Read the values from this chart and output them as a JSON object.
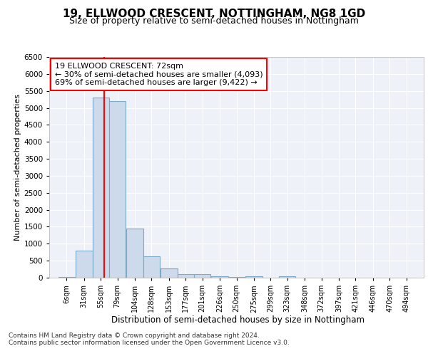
{
  "title1": "19, ELLWOOD CRESCENT, NOTTINGHAM, NG8 1GD",
  "title2": "Size of property relative to semi-detached houses in Nottingham",
  "xlabel": "Distribution of semi-detached houses by size in Nottingham",
  "ylabel": "Number of semi-detached properties",
  "footer1": "Contains HM Land Registry data © Crown copyright and database right 2024.",
  "footer2": "Contains public sector information licensed under the Open Government Licence v3.0.",
  "annotation_title": "19 ELLWOOD CRESCENT: 72sqm",
  "annotation_line1": "← 30% of semi-detached houses are smaller (4,093)",
  "annotation_line2": "69% of semi-detached houses are larger (9,422) →",
  "property_size": 72,
  "bin_labels": [
    "6sqm",
    "31sqm",
    "55sqm",
    "79sqm",
    "104sqm",
    "128sqm",
    "153sqm",
    "177sqm",
    "201sqm",
    "226sqm",
    "250sqm",
    "275sqm",
    "299sqm",
    "323sqm",
    "348sqm",
    "372sqm",
    "397sqm",
    "421sqm",
    "446sqm",
    "470sqm",
    "494sqm"
  ],
  "bin_edges": [
    6,
    31,
    55,
    79,
    104,
    128,
    153,
    177,
    201,
    226,
    250,
    275,
    299,
    323,
    348,
    372,
    397,
    421,
    446,
    470,
    494
  ],
  "bar_heights": [
    30,
    800,
    5300,
    5200,
    1450,
    625,
    275,
    115,
    100,
    50,
    30,
    50,
    0,
    50,
    0,
    0,
    0,
    0,
    0,
    0,
    0
  ],
  "bar_color": "#ccdaeb",
  "bar_edge_color": "#7aaac8",
  "red_line_x": 72,
  "ylim": [
    0,
    6500
  ],
  "yticks": [
    0,
    500,
    1000,
    1500,
    2000,
    2500,
    3000,
    3500,
    4000,
    4500,
    5000,
    5500,
    6000,
    6500
  ],
  "annotation_box_color": "white",
  "annotation_box_edge_color": "red",
  "bg_color": "#eef2f8",
  "grid_color": "white",
  "title1_fontsize": 11,
  "title2_fontsize": 9
}
